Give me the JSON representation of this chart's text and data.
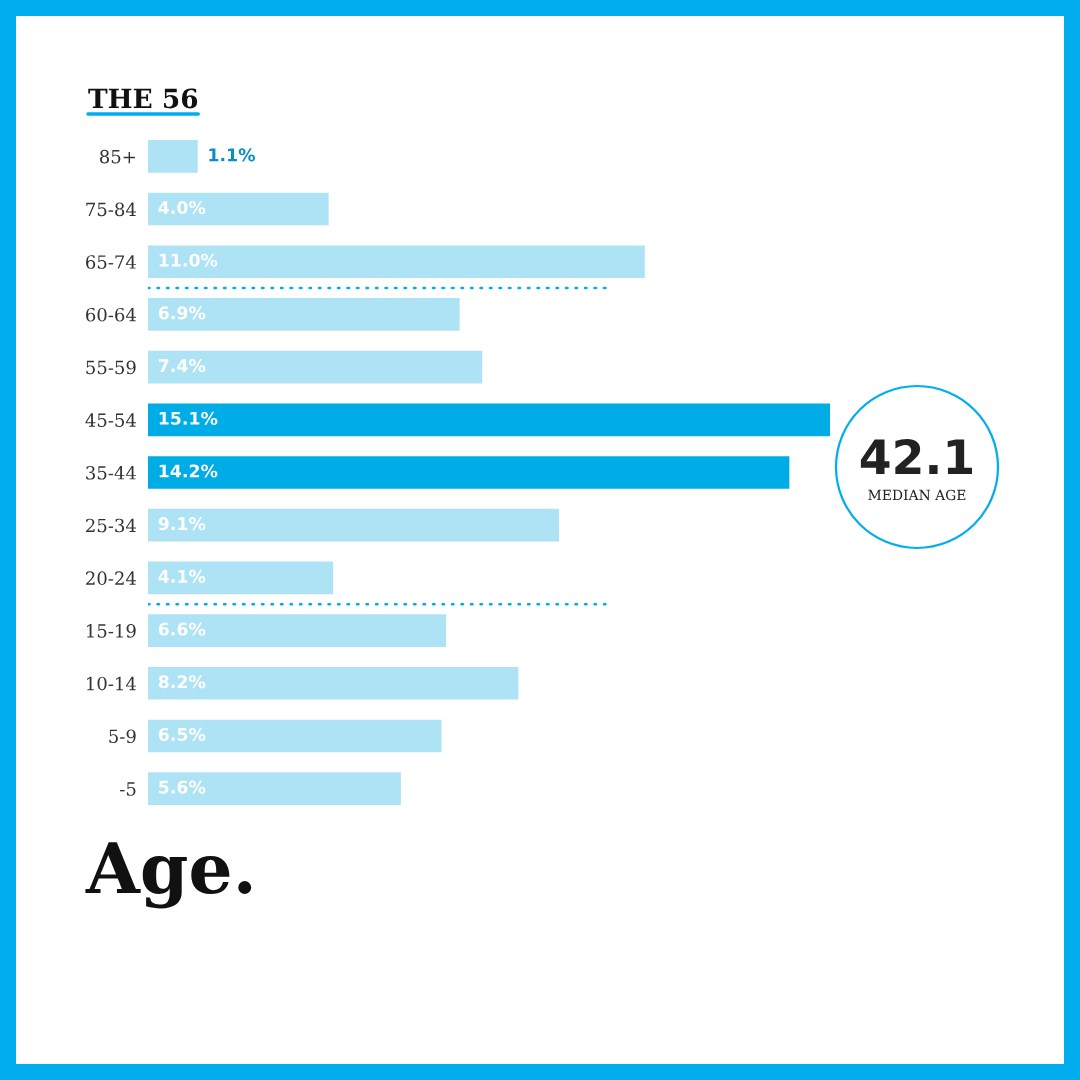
{
  "chart_data": {
    "type": "bar",
    "orientation": "horizontal",
    "title": "Age.",
    "subtitle": "THE 56",
    "categories": [
      "85+",
      "75-84",
      "65-74",
      "60-64",
      "55-59",
      "45-54",
      "35-44",
      "25-34",
      "20-24",
      "15-19",
      "10-14",
      "5-9",
      "-5"
    ],
    "values": [
      1.1,
      4.0,
      11.0,
      6.9,
      7.4,
      15.1,
      14.2,
      9.1,
      4.1,
      6.6,
      8.2,
      6.5,
      5.6
    ],
    "value_labels": [
      "1.1%",
      "4.0%",
      "11.0%",
      "6.9%",
      "7.4%",
      "15.1%",
      "14.2%",
      "9.1%",
      "4.1%",
      "6.6%",
      "8.2%",
      "6.5%",
      "5.6%"
    ],
    "colors": [
      "#aee3f6",
      "#aee3f6",
      "#aee3f6",
      "#aee3f6",
      "#aee3f6",
      "#00ace6",
      "#00ace6",
      "#aee3f6",
      "#aee3f6",
      "#aee3f6",
      "#aee3f6",
      "#aee3f6",
      "#aee3f6"
    ],
    "annotations": [
      "42.1",
      "MEDIAN AGE"
    ],
    "tick_labels": "y"
  }
}
